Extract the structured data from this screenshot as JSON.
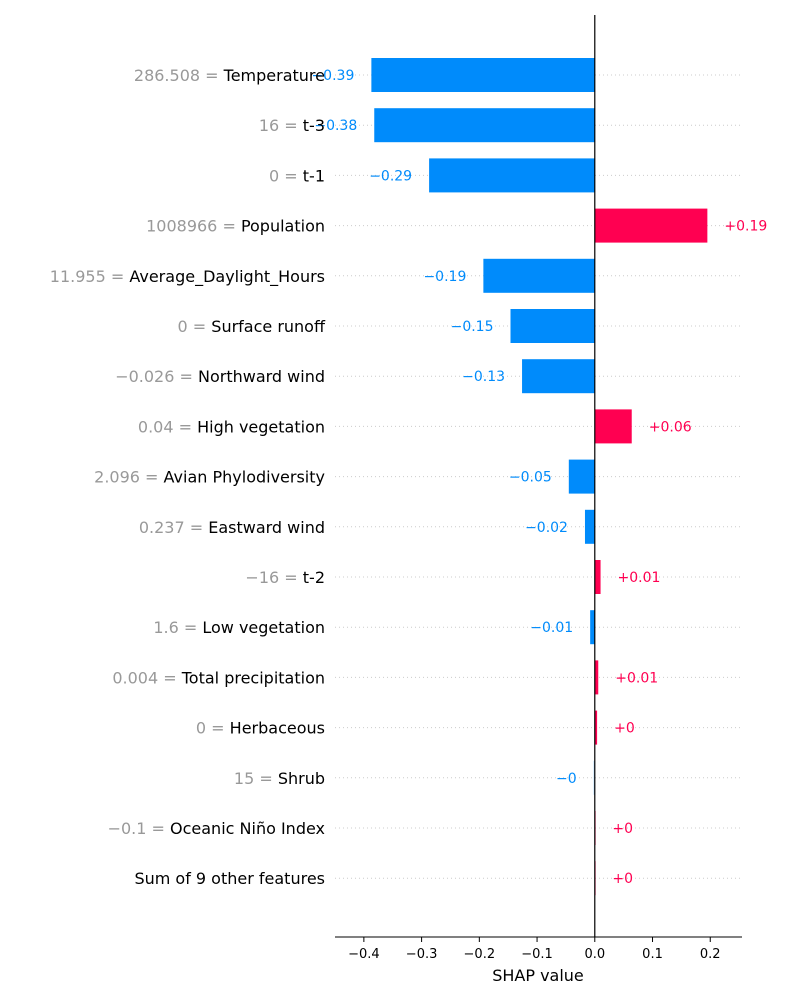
{
  "chart_data": {
    "type": "bar",
    "orientation": "horizontal",
    "xlabel": "SHAP value",
    "xlim": [
      -0.45,
      0.255
    ],
    "xticks": [
      -0.4,
      -0.3,
      -0.2,
      -0.1,
      0.0,
      0.1,
      0.2
    ],
    "xtick_labels": [
      "−0.4",
      "−0.3",
      "−0.2",
      "−0.1",
      "0.0",
      "0.1",
      "0.2"
    ],
    "grid": "dotted horizontal row guides",
    "colors": {
      "positive": "#ff0051",
      "negative": "#008bfb"
    },
    "features": [
      {
        "value": "286.508",
        "name": "Temperature",
        "shap": -0.387,
        "label": "−0.39"
      },
      {
        "value": "16",
        "name": "t-3",
        "shap": -0.382,
        "label": "−0.38"
      },
      {
        "value": "0",
        "name": "t-1",
        "shap": -0.287,
        "label": "−0.29"
      },
      {
        "value": "1008966",
        "name": "Population",
        "shap": 0.195,
        "label": "+0.19"
      },
      {
        "value": "11.955",
        "name": "Average_Daylight_Hours",
        "shap": -0.193,
        "label": "−0.19"
      },
      {
        "value": "0",
        "name": "Surface runoff",
        "shap": -0.146,
        "label": "−0.15"
      },
      {
        "value": "−0.026",
        "name": "Northward wind",
        "shap": -0.126,
        "label": "−0.13"
      },
      {
        "value": "0.04",
        "name": "High vegetation",
        "shap": 0.064,
        "label": "+0.06"
      },
      {
        "value": "2.096",
        "name": "Avian Phylodiversity",
        "shap": -0.045,
        "label": "−0.05"
      },
      {
        "value": "0.237",
        "name": "Eastward wind",
        "shap": -0.017,
        "label": "−0.02"
      },
      {
        "value": "−16",
        "name": "t-2",
        "shap": 0.01,
        "label": "+0.01"
      },
      {
        "value": "1.6",
        "name": "Low vegetation",
        "shap": -0.008,
        "label": "−0.01"
      },
      {
        "value": "0.004",
        "name": "Total precipitation",
        "shap": 0.006,
        "label": "+0.01"
      },
      {
        "value": "0",
        "name": "Herbaceous",
        "shap": 0.004,
        "label": "+0"
      },
      {
        "value": "15",
        "name": "Shrub",
        "shap": -0.002,
        "label": "−0"
      },
      {
        "value": "−0.1",
        "name": "Oceanic Niño Index",
        "shap": 0.001,
        "label": "+0"
      },
      {
        "value": "",
        "name": "Sum of 9 other features",
        "shap": 0.001,
        "label": "+0"
      }
    ]
  }
}
